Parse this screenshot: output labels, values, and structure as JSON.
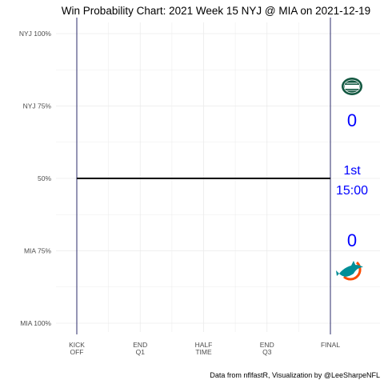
{
  "chart_data": {
    "type": "line",
    "title": "Win Probability Chart: 2021 Week 15 NYJ @ MIA on 2021-12-19",
    "xlabel": "",
    "ylabel": "",
    "x_ticks": [
      "KICK\nOFF",
      "END\nQ1",
      "HALF\nTIME",
      "END\nQ3",
      "FINAL"
    ],
    "y_ticks": [
      "NYJ 100%",
      "NYJ 75%",
      "50%",
      "MIA 75%",
      "MIA 100%"
    ],
    "y_tick_values": [
      100,
      75,
      50,
      75,
      100
    ],
    "xlim": [
      0,
      4
    ],
    "series": [
      {
        "points": [
          [
            0,
            50
          ],
          [
            4,
            50
          ]
        ]
      }
    ],
    "grid": true,
    "annotations": {
      "away_team": "NYJ",
      "home_team": "MIA",
      "away_score": "0",
      "home_score": "0",
      "quarter": "1st",
      "clock": "15:00"
    },
    "caption": "Data from nflfastR, Visualization by @LeeSharpeNFL"
  },
  "colors": {
    "background": "#ffffff",
    "grid": "#ebebeb",
    "kickoff_final_lines": "#2b2b6b",
    "wp_line": "#000000",
    "annotation_text": "#0000ff",
    "jets_green": "#125740",
    "dolphins_aqua": "#008e97",
    "dolphins_orange": "#fc4c02"
  },
  "icons": {
    "away_logo": "jets-logo-icon",
    "home_logo": "dolphins-logo-icon"
  }
}
